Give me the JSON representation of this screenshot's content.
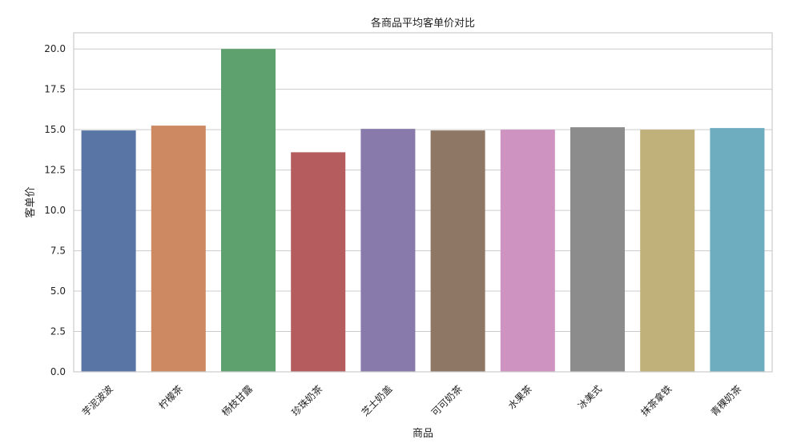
{
  "chart_data": {
    "type": "bar",
    "title": "各商品平均客单价对比",
    "xlabel": "商品",
    "ylabel": "客单价",
    "categories": [
      "芋泥波波",
      "柠檬茶",
      "杨枝甘露",
      "珍珠奶茶",
      "芝士奶盖",
      "可可奶茶",
      "水果茶",
      "冰美式",
      "抹茶拿铁",
      "青稞奶茶"
    ],
    "values": [
      14.95,
      15.25,
      20.0,
      13.6,
      15.05,
      14.95,
      15.0,
      15.15,
      15.0,
      15.1
    ],
    "colors": [
      "#5875a5",
      "#cc8962",
      "#5fa16e",
      "#b45c5e",
      "#887bab",
      "#8e7865",
      "#cf93c1",
      "#8c8c8c",
      "#c0b17b",
      "#6eadc0"
    ],
    "ylim": [
      0,
      21
    ],
    "yticks": [
      "0.0",
      "2.5",
      "5.0",
      "7.5",
      "10.0",
      "12.5",
      "15.0",
      "17.5",
      "20.0"
    ],
    "grid": true,
    "legend": "none"
  }
}
